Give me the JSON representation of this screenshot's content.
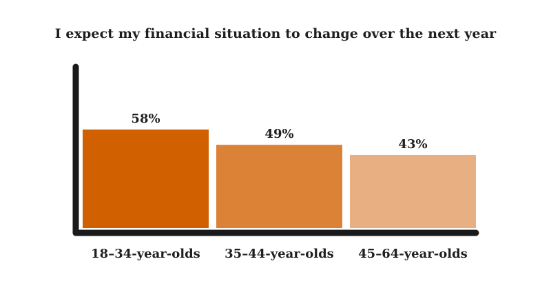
{
  "chart_data": {
    "type": "bar",
    "title": "I expect my financial situation to change over the next year",
    "categories": [
      "18–34-year-olds",
      "35–44-year-olds",
      "45–64-year-olds"
    ],
    "values": [
      58,
      49,
      43
    ],
    "value_labels": [
      "58%",
      "49%",
      "43%"
    ],
    "unit": "%",
    "xlabel": "",
    "ylabel": "",
    "ylim": [
      0,
      58
    ],
    "grid": false,
    "legend": "none",
    "colors": [
      "#d06000",
      "#dc8236",
      "#e8b082"
    ],
    "axis_color": "#1a1a1a"
  }
}
